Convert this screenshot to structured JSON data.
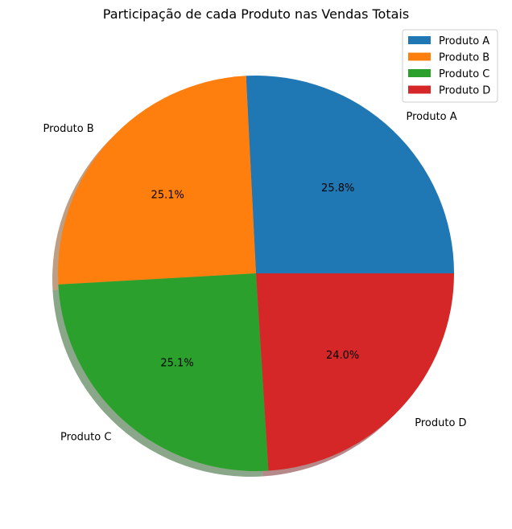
{
  "chart_data": {
    "type": "pie",
    "title": "Participação de cada Produto nas Vendas Totais",
    "labels": [
      "Produto A",
      "Produto B",
      "Produto C",
      "Produto D"
    ],
    "values": [
      25.8,
      25.1,
      25.1,
      24.0
    ],
    "percent_labels": [
      "25.8%",
      "25.1%",
      "25.1%",
      "24.0%"
    ],
    "colors": [
      "#1f77b4",
      "#ff7f0e",
      "#2ca02c",
      "#d62728"
    ],
    "start_angle_deg": 0,
    "direction": "counterclockwise",
    "shadow": true,
    "legend": {
      "placement": "top-right",
      "entries": [
        "Produto A",
        "Produto B",
        "Produto C",
        "Produto D"
      ]
    }
  }
}
